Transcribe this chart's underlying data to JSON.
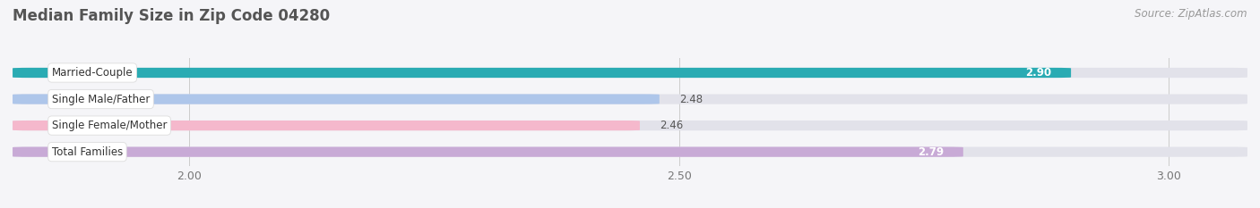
{
  "title": "Median Family Size in Zip Code 04280",
  "source": "Source: ZipAtlas.com",
  "categories": [
    "Married-Couple",
    "Single Male/Father",
    "Single Female/Mother",
    "Total Families"
  ],
  "values": [
    2.9,
    2.48,
    2.46,
    2.79
  ],
  "bar_colors": [
    "#2aabb3",
    "#aec6ea",
    "#f5b8cc",
    "#c8aad6"
  ],
  "xlim": [
    1.82,
    3.08
  ],
  "xticks": [
    2.0,
    2.5,
    3.0
  ],
  "xtick_labels": [
    "2.00",
    "2.50",
    "3.00"
  ],
  "value_label_color_inside": "#ffffff",
  "value_label_color_outside": "#555555",
  "bg_color": "#f5f5f8",
  "bar_bg_color": "#e2e2ea",
  "title_color": "#555555",
  "source_color": "#999999",
  "title_fontsize": 12,
  "source_fontsize": 8.5,
  "tick_fontsize": 9,
  "label_fontsize": 8.5,
  "value_fontsize": 8.5,
  "bar_height": 0.38,
  "inside_threshold": 2.65
}
